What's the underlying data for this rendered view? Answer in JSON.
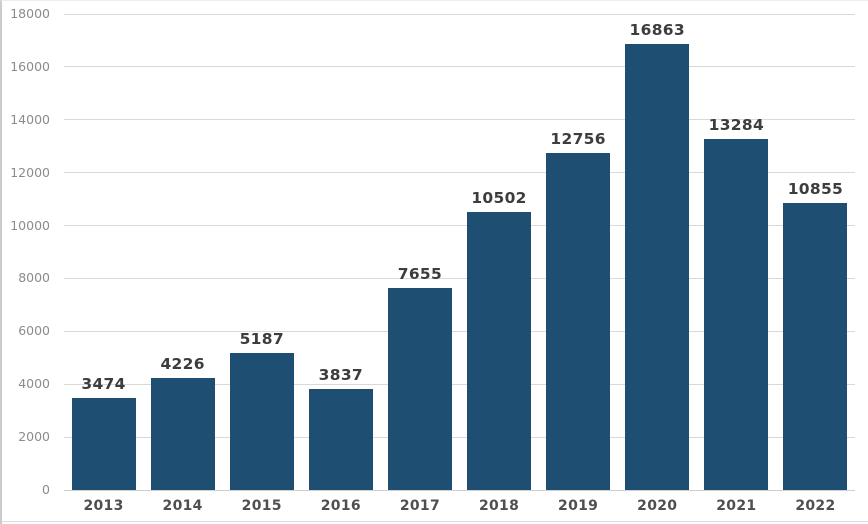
{
  "chart_data": {
    "type": "bar",
    "title": "",
    "xlabel": "",
    "ylabel": "",
    "categories": [
      "2013",
      "2014",
      "2015",
      "2016",
      "2017",
      "2018",
      "2019",
      "2020",
      "2021",
      "2022"
    ],
    "values": [
      3474,
      4226,
      5187,
      3837,
      7655,
      10502,
      12756,
      16863,
      13284,
      10855
    ],
    "data_labels": [
      "3474",
      "4226",
      "5187",
      "3837",
      "7655",
      "10502",
      "12756",
      "16863",
      "13284",
      "10855"
    ],
    "ylim": [
      0,
      18000
    ],
    "ytick_step": 2000,
    "yticks": [
      0,
      2000,
      4000,
      6000,
      8000,
      10000,
      12000,
      14000,
      16000,
      18000
    ],
    "ytick_labels": [
      "0",
      "2000",
      "4000",
      "6000",
      "8000",
      "10000",
      "12000",
      "14000",
      "16000",
      "18000"
    ],
    "grid": true,
    "legend": "none",
    "colors": {
      "bar_fill": "#1f4e73",
      "gridline": "#d9d9d9",
      "value_label": "#3d3d3d",
      "x_tick_label": "#4f4f4f",
      "y_tick_label": "#8c8c8c",
      "background": "#ffffff"
    }
  }
}
